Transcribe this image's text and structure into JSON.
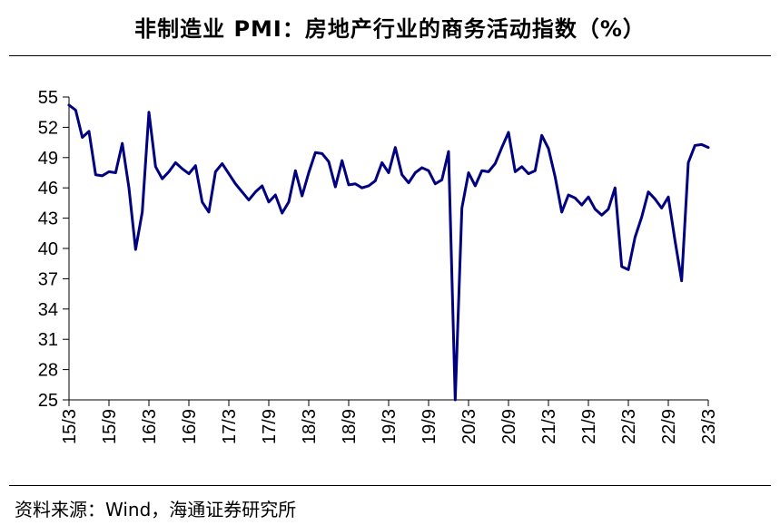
{
  "title": "非制造业 PMI：房地产行业的商务活动指数（%）",
  "source": "资料来源：Wind，海通证券研究所",
  "chart_data": {
    "type": "line",
    "title": "非制造业 PMI：房地产行业的商务活动指数（%）",
    "xlabel": "",
    "ylabel": "",
    "ylim": [
      25,
      55
    ],
    "yticks": [
      25,
      28,
      31,
      34,
      37,
      40,
      43,
      46,
      49,
      52,
      55
    ],
    "ytick_labels": [
      "25",
      "28",
      "31",
      "34",
      "37",
      "40",
      "43",
      "46",
      "49",
      "52",
      "55"
    ],
    "xtick_labels": [
      "15/3",
      "15/9",
      "16/3",
      "16/9",
      "17/3",
      "17/9",
      "18/3",
      "18/9",
      "19/3",
      "19/9",
      "20/3",
      "20/9",
      "21/3",
      "21/9",
      "22/3",
      "22/9",
      "23/3"
    ],
    "line_color": "#000080",
    "grid": false,
    "series": [
      {
        "name": "",
        "x": [
          "15/3",
          "15/4",
          "15/5",
          "15/6",
          "15/7",
          "15/8",
          "15/9",
          "15/10",
          "15/11",
          "15/12",
          "16/1",
          "16/2",
          "16/3",
          "16/4",
          "16/5",
          "16/6",
          "16/7",
          "16/8",
          "16/9",
          "16/10",
          "16/11",
          "16/12",
          "17/1",
          "17/2",
          "17/3",
          "17/4",
          "17/5",
          "17/6",
          "17/7",
          "17/8",
          "17/9",
          "17/10",
          "17/11",
          "17/12",
          "18/1",
          "18/2",
          "18/3",
          "18/4",
          "18/5",
          "18/6",
          "18/7",
          "18/8",
          "18/9",
          "18/10",
          "18/11",
          "18/12",
          "19/1",
          "19/2",
          "19/3",
          "19/4",
          "19/5",
          "19/6",
          "19/7",
          "19/8",
          "19/9",
          "19/10",
          "19/11",
          "19/12",
          "20/1",
          "20/2",
          "20/3",
          "20/4",
          "20/5",
          "20/6",
          "20/7",
          "20/8",
          "20/9",
          "20/10",
          "20/11",
          "20/12",
          "21/1",
          "21/2",
          "21/3",
          "21/4",
          "21/5",
          "21/6",
          "21/7",
          "21/8",
          "21/9",
          "21/10",
          "21/11",
          "21/12",
          "22/1",
          "22/2",
          "22/3",
          "22/4",
          "22/5",
          "22/6",
          "22/7",
          "22/8",
          "22/9",
          "22/10",
          "22/11",
          "22/12",
          "23/1",
          "23/2",
          "23/3"
        ],
        "values": [
          54.2,
          53.7,
          51.0,
          51.6,
          47.3,
          47.2,
          47.6,
          47.5,
          50.4,
          46.0,
          39.9,
          43.6,
          53.5,
          48.1,
          46.9,
          47.6,
          48.5,
          47.9,
          47.4,
          48.2,
          44.6,
          43.6,
          47.6,
          48.4,
          47.4,
          46.4,
          45.6,
          44.8,
          45.6,
          46.2,
          44.6,
          45.3,
          43.5,
          44.6,
          47.7,
          45.2,
          47.5,
          49.5,
          49.4,
          48.6,
          46.1,
          48.7,
          46.3,
          46.4,
          46.0,
          46.2,
          46.7,
          48.5,
          47.5,
          50.0,
          47.3,
          46.5,
          47.5,
          48.0,
          47.7,
          46.4,
          46.8,
          49.6,
          25.0,
          44.0,
          47.5,
          46.2,
          47.7,
          47.6,
          48.4,
          50.0,
          51.5,
          47.6,
          48.1,
          47.4,
          47.7,
          51.2,
          49.9,
          47.1,
          43.6,
          45.3,
          45.0,
          44.3,
          45.1,
          43.9,
          43.3,
          43.9,
          46.0,
          38.2,
          37.9,
          41.1,
          43.1,
          45.6,
          44.9,
          44.0,
          45.1,
          40.8,
          36.8,
          48.5,
          50.2,
          50.3,
          50.0
        ]
      }
    ]
  }
}
